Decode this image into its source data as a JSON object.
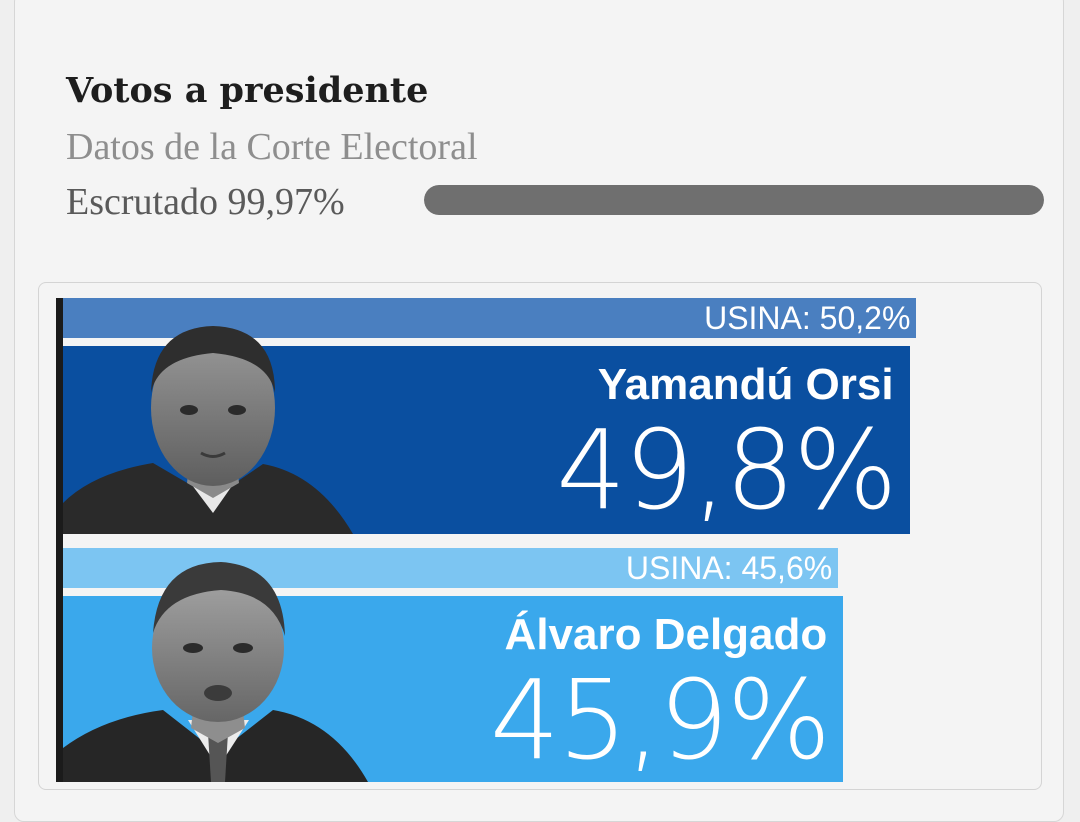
{
  "header": {
    "title": "Votos a presidente",
    "subtitle": "Datos de la Corte Electoral",
    "progress_label": "Escrutado 99,97%",
    "progress_fraction": 0.9997,
    "progress_color": "#6f6f6f"
  },
  "chart_data": {
    "type": "bar",
    "orientation": "horizontal",
    "categories": [
      "Yamandú Orsi",
      "Álvaro Delgado"
    ],
    "series": [
      {
        "name": "",
        "values": [
          49.8,
          45.9
        ]
      },
      {
        "name": "USINA",
        "values": [
          50.2,
          45.6
        ]
      }
    ],
    "xlim": [
      0,
      55
    ],
    "candidates": [
      {
        "name": "Yamandú Orsi",
        "percent": 49.8,
        "percent_label": "49,8%",
        "usina_percent": 50.2,
        "usina_label": "USINA: 50,2%",
        "color": "#0a4fa0",
        "usina_color": "#4a7fc0",
        "photo_icon": "candidate-portrait-orsi"
      },
      {
        "name": "Álvaro Delgado",
        "percent": 45.9,
        "percent_label": "45,9%",
        "usina_percent": 45.6,
        "usina_label": "USINA: 45,6%",
        "color": "#3aa8ec",
        "usina_color": "#7cc5f2",
        "photo_icon": "candidate-portrait-delgado"
      }
    ]
  }
}
